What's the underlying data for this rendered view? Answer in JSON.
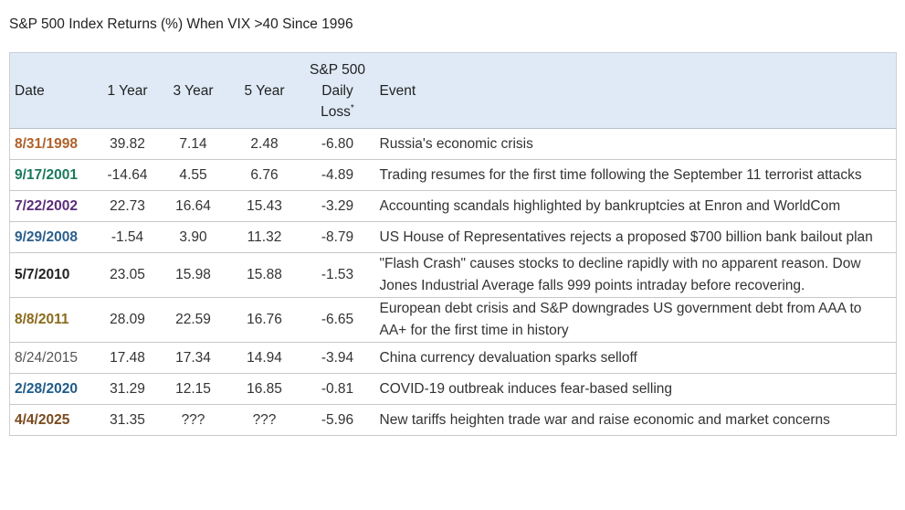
{
  "title": "S&P 500 Index Returns (%) When VIX >40 Since 1996",
  "table": {
    "columns": [
      "Date",
      "1 Year",
      "3 Year",
      "5 Year",
      {
        "lines": [
          "S&P 500",
          "Daily",
          "Loss"
        ],
        "note": "*"
      },
      "Event"
    ],
    "rows": [
      {
        "color": "#b0602a",
        "bold": true,
        "cells": [
          "8/31/1998",
          "39.82",
          "7.14",
          "2.48",
          "-6.80",
          "Russia's economic crisis"
        ]
      },
      {
        "color": "#1b7a5c",
        "bold": true,
        "cells": [
          "9/17/2001",
          "-14.64",
          "4.55",
          "6.76",
          "-4.89",
          "Trading resumes for the first time following the September 11 terrorist attacks"
        ]
      },
      {
        "color": "#5a2e78",
        "bold": true,
        "cells": [
          "7/22/2002",
          "22.73",
          "16.64",
          "15.43",
          "-3.29",
          "Accounting scandals highlighted by bankruptcies at Enron and WorldCom"
        ]
      },
      {
        "color": "#2b5f8c",
        "bold": true,
        "cells": [
          "9/29/2008",
          "-1.54",
          "3.90",
          "11.32",
          "-8.79",
          "US House of Representatives rejects a proposed $700 billion bank bailout plan"
        ]
      },
      {
        "color": "#222222",
        "bold": true,
        "cells": [
          "5/7/2010",
          "23.05",
          "15.98",
          "15.88",
          "-1.53",
          "\"Flash Crash\" causes stocks to decline rapidly with no apparent reason. Dow Jones Industrial Average falls 999 points intraday before recovering."
        ]
      },
      {
        "color": "#8a6a1c",
        "bold": true,
        "cells": [
          "8/8/2011",
          "28.09",
          "22.59",
          "16.76",
          "-6.65",
          "European debt crisis and S&P downgrades US government debt from AAA to AA+ for the first time in history"
        ]
      },
      {
        "color": "#555555",
        "bold": false,
        "cells": [
          "8/24/2015",
          "17.48",
          "17.34",
          "14.94",
          "-3.94",
          "China currency devaluation sparks selloff"
        ]
      },
      {
        "color": "#1f5b8a",
        "bold": true,
        "cells": [
          "2/28/2020",
          "31.29",
          "12.15",
          "16.85",
          "-0.81",
          "COVID-19 outbreak induces fear-based selling"
        ]
      },
      {
        "color": "#7a4a1e",
        "bold": true,
        "cells": [
          "4/4/2025",
          "31.35",
          "???",
          "???",
          "-5.96",
          "New tariffs heighten trade war and raise economic and market concerns"
        ]
      }
    ]
  }
}
